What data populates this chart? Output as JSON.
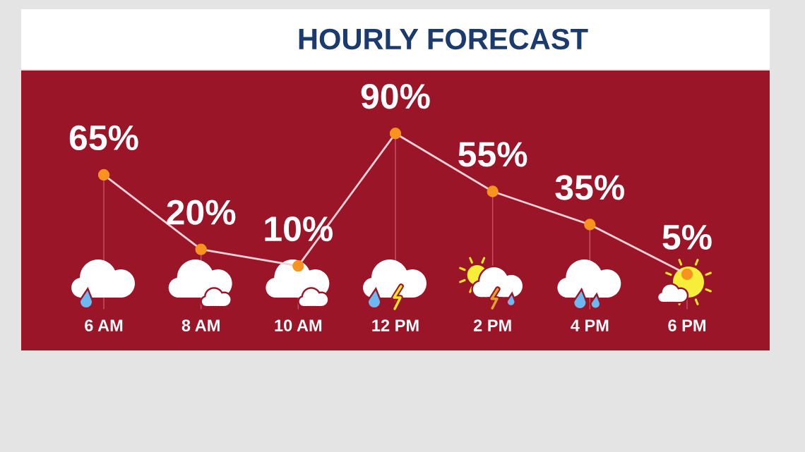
{
  "chart_data": {
    "type": "line",
    "title": "HOURLY FORECAST",
    "categories": [
      "6 AM",
      "8 AM",
      "10 AM",
      "12 PM",
      "2 PM",
      "4 PM",
      "6 PM"
    ],
    "series": [
      {
        "color": "#f7931e",
        "values": [
          65,
          20,
          10,
          90,
          55,
          35,
          5
        ],
        "value_labels": [
          "65%",
          "20%",
          "10%",
          "90%",
          "55%",
          "35%",
          "5%"
        ]
      }
    ],
    "ylim": [
      -41,
      128
    ],
    "tick_labels": "x",
    "marker": "circle",
    "line_style": "solid"
  }
}
